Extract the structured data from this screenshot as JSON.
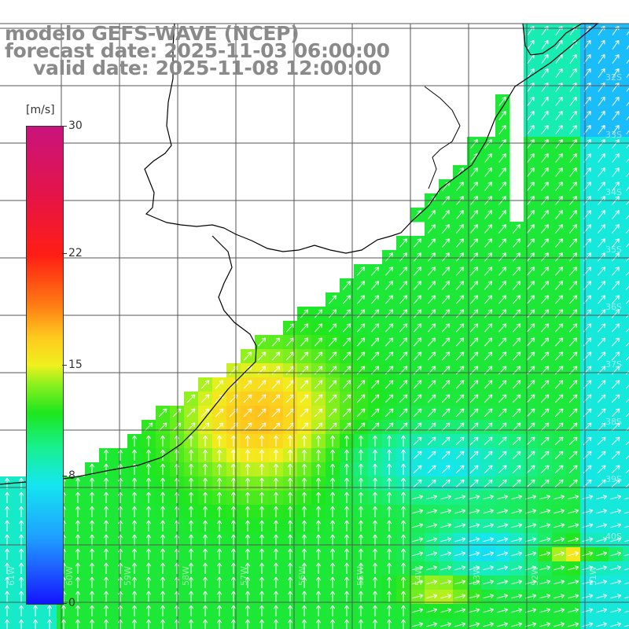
{
  "title": {
    "line1": "modelo GEFS-WAVE (NCEP)",
    "line2": "forecast date: 2025-11-03 06:00:00",
    "line3": "valid date: 2025-11-08 12:00:00"
  },
  "colorbar": {
    "unit": "[m/s]",
    "ticks": [
      "30",
      "22",
      "15",
      "8",
      "0"
    ],
    "tick_values": [
      30,
      22,
      15,
      8,
      0
    ],
    "min": 0,
    "max": 30
  },
  "map": {
    "lon_labels": [
      "61W",
      "60W",
      "59W",
      "58W",
      "57W",
      "56W",
      "55W",
      "54W",
      "53W",
      "52W",
      "51W"
    ],
    "lat_labels": [
      "32S",
      "33S",
      "34S",
      "35S",
      "36S",
      "37S",
      "38S",
      "39S",
      "40S"
    ],
    "field": "wind speed",
    "colors": {
      "low": "#1e64ff",
      "mid": "#1ee61e",
      "high": "#f0f01e",
      "ocean_green": "#2ee83a",
      "cyan": "#18e6e6"
    }
  }
}
